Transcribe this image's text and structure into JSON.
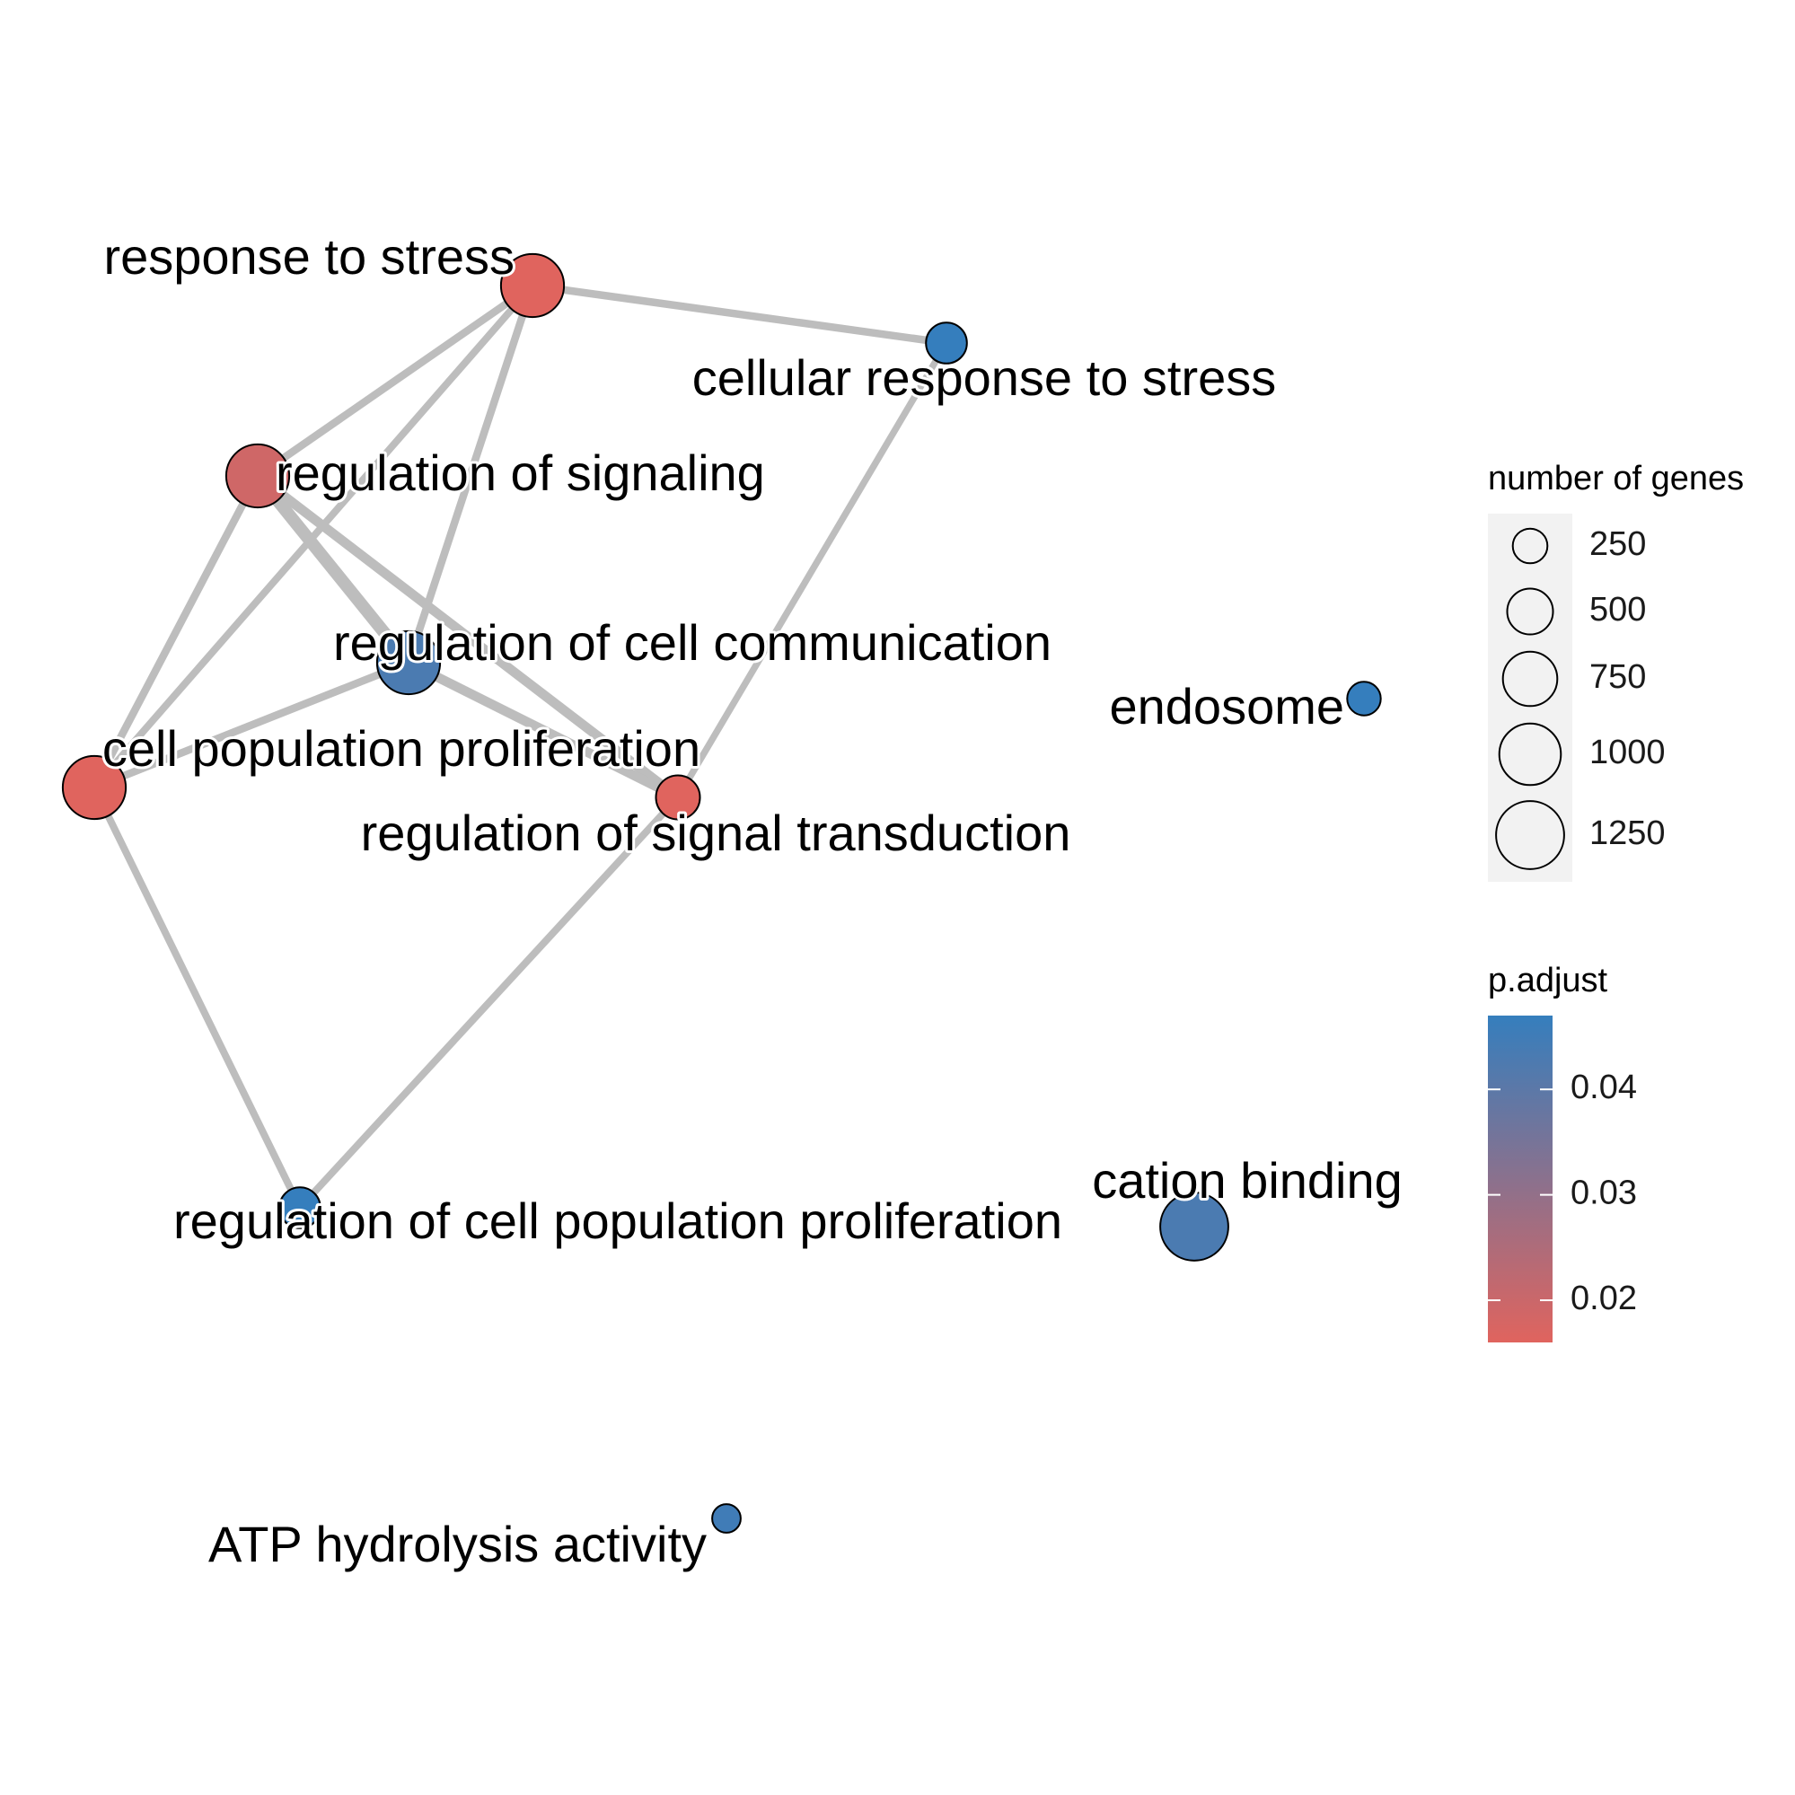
{
  "chart_data": {
    "type": "network",
    "title": "",
    "nodes": [
      {
        "id": "response_to_stress",
        "label": "response to stress",
        "size": 1050,
        "p_adjust": 0.016
      },
      {
        "id": "cellular_response_to_stress",
        "label": "cellular response to stress",
        "size": 380,
        "p_adjust": 0.047
      },
      {
        "id": "regulation_of_signaling",
        "label": "regulation of signaling",
        "size": 1050,
        "p_adjust": 0.019
      },
      {
        "id": "regulation_of_cell_communication",
        "label": "regulation of cell communication",
        "size": 1050,
        "p_adjust": 0.043
      },
      {
        "id": "cell_population_proliferation",
        "label": "cell population proliferation",
        "size": 1050,
        "p_adjust": 0.016
      },
      {
        "id": "regulation_of_signal_transduction",
        "label": "regulation of signal transduction",
        "size": 450,
        "p_adjust": 0.016
      },
      {
        "id": "endosome",
        "label": "endosome",
        "size": 230,
        "p_adjust": 0.047
      },
      {
        "id": "cation_binding",
        "label": "cation binding",
        "size": 1250,
        "p_adjust": 0.043
      },
      {
        "id": "regulation_of_cell_population_proliferation",
        "label": "regulation of cell population proliferation",
        "size": 380,
        "p_adjust": 0.047
      },
      {
        "id": "atp_hydrolysis_activity",
        "label": "ATP hydrolysis activity",
        "size": 150,
        "p_adjust": 0.045
      }
    ],
    "edges": [
      {
        "source": "response_to_stress",
        "target": "cellular_response_to_stress",
        "weight": 0.5
      },
      {
        "source": "response_to_stress",
        "target": "regulation_of_signaling",
        "weight": 0.5
      },
      {
        "source": "response_to_stress",
        "target": "regulation_of_cell_communication",
        "weight": 0.5
      },
      {
        "source": "response_to_stress",
        "target": "cell_population_proliferation",
        "weight": 0.45
      },
      {
        "source": "regulation_of_signaling",
        "target": "regulation_of_cell_communication",
        "weight": 1.0
      },
      {
        "source": "regulation_of_signaling",
        "target": "regulation_of_signal_transduction",
        "weight": 0.7
      },
      {
        "source": "regulation_of_signaling",
        "target": "cell_population_proliferation",
        "weight": 0.5
      },
      {
        "source": "regulation_of_cell_communication",
        "target": "regulation_of_signal_transduction",
        "weight": 0.7
      },
      {
        "source": "regulation_of_cell_communication",
        "target": "cell_population_proliferation",
        "weight": 0.5
      },
      {
        "source": "cellular_response_to_stress",
        "target": "regulation_of_signal_transduction",
        "weight": 0.4
      },
      {
        "source": "cell_population_proliferation",
        "target": "regulation_of_cell_population_proliferation",
        "weight": 0.45
      },
      {
        "source": "regulation_of_cell_population_proliferation",
        "target": "regulation_of_signal_transduction",
        "weight": 0.45
      }
    ],
    "legend": {
      "size": {
        "title": "number of genes",
        "breaks": [
          250,
          500,
          750,
          1000,
          1250
        ],
        "labels": [
          "250",
          "500",
          "750",
          "1000",
          "1250"
        ]
      },
      "color": {
        "title": "p.adjust",
        "range": [
          0.016,
          0.047
        ],
        "breaks": [
          0.04,
          0.03,
          0.02
        ],
        "labels": [
          "0.04",
          "0.03",
          "0.02"
        ],
        "low_color": "#e0645e",
        "high_color": "#357ebd"
      }
    },
    "colors": {
      "edge": "#bdbdbd",
      "node_outline": "#000000",
      "legend_key_background": "#f2f2f2"
    }
  }
}
